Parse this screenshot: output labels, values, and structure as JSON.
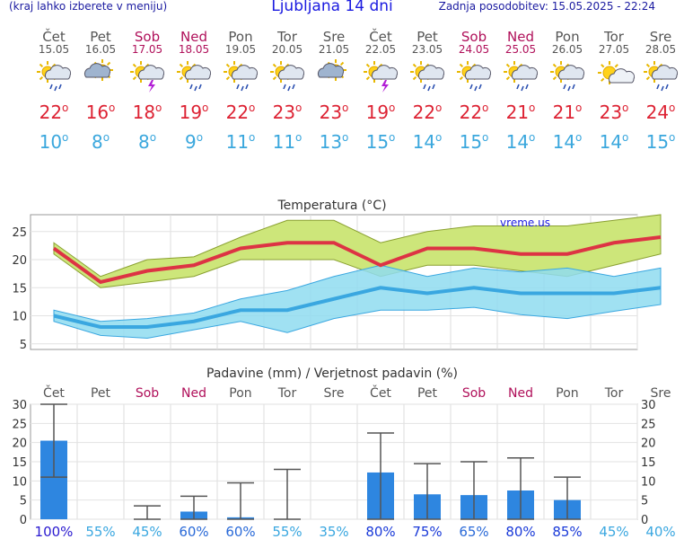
{
  "header": {
    "menu_note": "(kraj lahko izberete v meniju)",
    "title": "Ljubljana 14 dni",
    "updated": "Zadnja posodobitev: 15.05.2025 - 22:24"
  },
  "forecast": [
    {
      "day": "Čet",
      "date": "15.05",
      "icon": "partly-sunny-rain-icon",
      "tmax": "22",
      "tmin": "10",
      "weekend": false
    },
    {
      "day": "Pet",
      "date": "16.05",
      "icon": "cloudy-sun-icon",
      "tmax": "16",
      "tmin": "8",
      "weekend": false
    },
    {
      "day": "Sob",
      "date": "17.05",
      "icon": "sun-thunderstorm-icon",
      "tmax": "18",
      "tmin": "8",
      "weekend": true
    },
    {
      "day": "Ned",
      "date": "18.05",
      "icon": "partly-sunny-rain-icon",
      "tmax": "19",
      "tmin": "9",
      "weekend": true
    },
    {
      "day": "Pon",
      "date": "19.05",
      "icon": "partly-sunny-rain-icon",
      "tmax": "22",
      "tmin": "11",
      "weekend": false
    },
    {
      "day": "Tor",
      "date": "20.05",
      "icon": "partly-sunny-rain-icon",
      "tmax": "23",
      "tmin": "11",
      "weekend": false
    },
    {
      "day": "Sre",
      "date": "21.05",
      "icon": "cloudy-sun-icon",
      "tmax": "23",
      "tmin": "13",
      "weekend": false
    },
    {
      "day": "Čet",
      "date": "22.05",
      "icon": "sun-thunderstorm-icon",
      "tmax": "19",
      "tmin": "15",
      "weekend": false
    },
    {
      "day": "Pet",
      "date": "23.05",
      "icon": "partly-sunny-rain-icon",
      "tmax": "22",
      "tmin": "14",
      "weekend": false
    },
    {
      "day": "Sob",
      "date": "24.05",
      "icon": "partly-sunny-rain-icon",
      "tmax": "22",
      "tmin": "15",
      "weekend": true
    },
    {
      "day": "Ned",
      "date": "25.05",
      "icon": "partly-sunny-rain-icon",
      "tmax": "21",
      "tmin": "14",
      "weekend": true
    },
    {
      "day": "Pon",
      "date": "26.05",
      "icon": "partly-sunny-rain-icon",
      "tmax": "21",
      "tmin": "14",
      "weekend": false
    },
    {
      "day": "Tor",
      "date": "27.05",
      "icon": "sun-small-cloud-icon",
      "tmax": "23",
      "tmin": "14",
      "weekend": false
    },
    {
      "day": "Sre",
      "date": "28.05",
      "icon": "partly-sunny-rain-icon",
      "tmax": "24",
      "tmin": "15",
      "weekend": false
    }
  ],
  "colors": {
    "max": "#dd3344",
    "min": "#3aa7e0",
    "weekend": "#b0105a",
    "bar": "#2e86e0",
    "maxband": "#cde67a",
    "minband": "#8fdcf0",
    "overlap": "#6fcf7a"
  },
  "chart_data": [
    {
      "type": "line",
      "title": "Temperatura (°C)",
      "watermark": "vreme.us",
      "x": [
        "15.05",
        "16.05",
        "17.05",
        "18.05",
        "19.05",
        "20.05",
        "21.05",
        "22.05",
        "23.05",
        "24.05",
        "25.05",
        "26.05",
        "27.05",
        "28.05"
      ],
      "yticks": [
        5,
        10,
        15,
        20,
        25
      ],
      "ylim": [
        4,
        28
      ],
      "series": [
        {
          "role": "max",
          "values": [
            22,
            16,
            18,
            19,
            22,
            23,
            23,
            19,
            22,
            22,
            21,
            21,
            23,
            24
          ],
          "band_low": [
            21,
            15,
            16,
            17,
            20,
            20,
            20,
            17,
            19,
            19,
            18,
            17,
            19,
            21
          ],
          "band_high": [
            23,
            17,
            20,
            20.5,
            24,
            27,
            27,
            23,
            25,
            26,
            26,
            26,
            27,
            28
          ]
        },
        {
          "role": "min",
          "values": [
            10,
            8,
            8,
            9,
            11,
            11,
            13,
            15,
            14,
            15,
            14,
            14,
            14,
            15
          ],
          "band_low": [
            9,
            6.5,
            6,
            7.5,
            9,
            7,
            9.5,
            11,
            11,
            11.5,
            10.2,
            9.5,
            10.8,
            12
          ],
          "band_high": [
            11,
            9,
            9.5,
            10.5,
            13,
            14.5,
            17,
            19,
            17,
            18.5,
            17.8,
            18.5,
            17,
            18.5
          ]
        }
      ]
    },
    {
      "type": "bar",
      "title": "Padavine (mm) / Verjetnost padavin (%)",
      "categories": [
        "Čet",
        "Pet",
        "Sob",
        "Ned",
        "Pon",
        "Tor",
        "Sre",
        "Čet",
        "Pet",
        "Sob",
        "Ned",
        "Pon",
        "Tor",
        "Sre"
      ],
      "weekend": [
        false,
        false,
        true,
        true,
        false,
        false,
        false,
        false,
        false,
        true,
        true,
        false,
        false,
        false
      ],
      "values": [
        20.5,
        0,
        0,
        2,
        0.5,
        0,
        0,
        12.2,
        6.5,
        6.3,
        7.5,
        5,
        0,
        0
      ],
      "err_low": [
        11,
        0,
        0,
        0,
        0,
        0,
        0,
        0,
        0,
        0,
        0,
        0,
        0,
        0
      ],
      "err_high": [
        30,
        0,
        3.5,
        6,
        9.5,
        13,
        0,
        22.5,
        14.5,
        15,
        16,
        11,
        0,
        0
      ],
      "yticks": [
        0,
        5,
        10,
        15,
        20,
        25,
        30
      ],
      "ylim": [
        0,
        30
      ],
      "probabilities": [
        "100%",
        "55%",
        "45%",
        "60%",
        "60%",
        "55%",
        "35%",
        "80%",
        "75%",
        "65%",
        "80%",
        "85%",
        "45%",
        "40%"
      ]
    }
  ]
}
